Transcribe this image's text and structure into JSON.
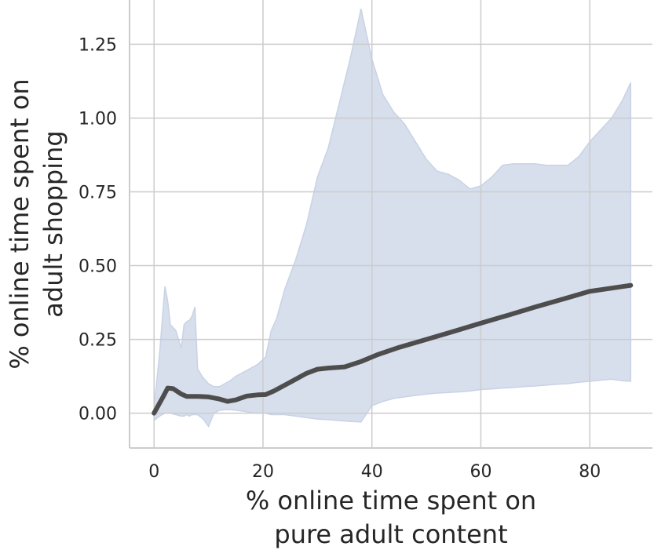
{
  "chart_data": {
    "type": "line",
    "xlabel_lines": [
      "% online time spent on",
      "pure adult content"
    ],
    "ylabel_lines": [
      "% online time spent on",
      "adult shopping"
    ],
    "xlim": [
      -4.5,
      91.5
    ],
    "ylim": [
      -0.118,
      1.4
    ],
    "grid": true,
    "x_ticks": [
      0,
      20,
      40,
      60,
      80
    ],
    "y_ticks": [
      0.0,
      0.25,
      0.5,
      0.75,
      1.0,
      1.25
    ],
    "x_tick_labels": [
      "0",
      "20",
      "40",
      "60",
      "80"
    ],
    "y_tick_labels": [
      "0.00",
      "0.25",
      "0.50",
      "0.75",
      "1.00",
      "1.25"
    ],
    "colors": {
      "line": "#4d4d4d",
      "band": "#c9d3e6",
      "grid": "#cccccc",
      "axes": "#cccccc"
    },
    "series": [
      {
        "x": [
          0,
          1.5,
          2.5,
          3.5,
          5,
          6,
          8,
          10,
          12,
          13.5,
          15,
          17,
          19,
          20.5,
          22,
          25,
          28,
          30,
          32,
          35,
          38,
          41,
          45,
          50,
          55,
          60,
          65,
          70,
          75,
          80,
          87.5
        ],
        "y": [
          0.0,
          0.05,
          0.085,
          0.083,
          0.065,
          0.057,
          0.057,
          0.055,
          0.048,
          0.04,
          0.045,
          0.058,
          0.062,
          0.063,
          0.075,
          0.105,
          0.135,
          0.149,
          0.153,
          0.157,
          0.175,
          0.198,
          0.223,
          0.25,
          0.277,
          0.305,
          0.332,
          0.36,
          0.386,
          0.413,
          0.433
        ]
      }
    ],
    "band": {
      "x": [
        0,
        1,
        2,
        2.5,
        3,
        4,
        5,
        5.5,
        6,
        6.5,
        7,
        7.5,
        8,
        9,
        10,
        11,
        12,
        13,
        14,
        15,
        17,
        19,
        20.5,
        21.5,
        22.5,
        24,
        26,
        28,
        30,
        32,
        34,
        36,
        38,
        40,
        42,
        44,
        46,
        48,
        50,
        52,
        54,
        56,
        58,
        60,
        62,
        64,
        66,
        68,
        70,
        72,
        74,
        76,
        78,
        80,
        82,
        84,
        86,
        87.5
      ],
      "upper": [
        0.02,
        0.2,
        0.43,
        0.38,
        0.3,
        0.28,
        0.22,
        0.3,
        0.31,
        0.315,
        0.33,
        0.36,
        0.15,
        0.12,
        0.1,
        0.09,
        0.09,
        0.1,
        0.11,
        0.125,
        0.145,
        0.165,
        0.19,
        0.28,
        0.32,
        0.42,
        0.52,
        0.64,
        0.8,
        0.9,
        1.05,
        1.2,
        1.37,
        1.2,
        1.08,
        1.02,
        0.98,
        0.92,
        0.86,
        0.82,
        0.81,
        0.79,
        0.76,
        0.77,
        0.8,
        0.84,
        0.845,
        0.845,
        0.845,
        0.84,
        0.84,
        0.84,
        0.87,
        0.92,
        0.96,
        1.0,
        1.06,
        1.12
      ],
      "lower": [
        -0.025,
        -0.01,
        0.0,
        0.0,
        0.0,
        -0.005,
        -0.01,
        -0.01,
        -0.005,
        -0.01,
        -0.005,
        -0.005,
        -0.005,
        -0.02,
        -0.045,
        0.0,
        0.01,
        0.012,
        0.012,
        0.01,
        0.005,
        0.0,
        0.0,
        -0.005,
        -0.005,
        -0.005,
        -0.01,
        -0.015,
        -0.02,
        -0.022,
        -0.025,
        -0.028,
        -0.03,
        0.025,
        0.04,
        0.05,
        0.055,
        0.06,
        0.065,
        0.068,
        0.07,
        0.072,
        0.075,
        0.08,
        0.082,
        0.085,
        0.087,
        0.09,
        0.092,
        0.095,
        0.098,
        0.1,
        0.105,
        0.108,
        0.112,
        0.115,
        0.11,
        0.108
      ]
    }
  }
}
